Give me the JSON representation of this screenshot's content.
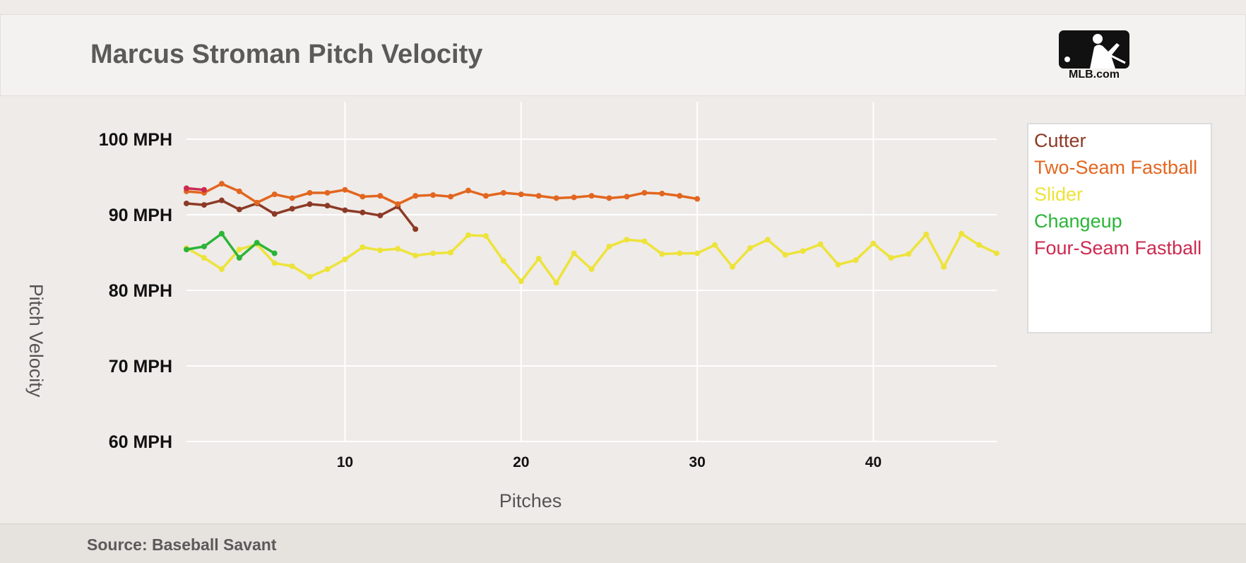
{
  "header": {
    "title": "Marcus Stroman Pitch Velocity",
    "logo_text": "MLB.com",
    "logo_icon": "mlb-batter-logo-icon"
  },
  "footer": {
    "source": "Source: Baseball Savant"
  },
  "chart_data": {
    "type": "line",
    "title": "Marcus Stroman Pitch Velocity",
    "xlabel": "Pitches",
    "ylabel": "Pitch Velocity",
    "xlim": [
      1,
      47
    ],
    "ylim": [
      60,
      100
    ],
    "x_ticks": [
      10,
      20,
      30,
      40
    ],
    "x_tick_labels": [
      "10",
      "20",
      "30",
      "40"
    ],
    "y_ticks": [
      60,
      70,
      80,
      90,
      100
    ],
    "y_tick_labels": [
      "60 MPH",
      "70 MPH",
      "80 MPH",
      "90 MPH",
      "100 MPH"
    ],
    "grid": true,
    "legend": "right",
    "series": [
      {
        "name": "Cutter",
        "color": "#8c3a26",
        "x": [
          1,
          2,
          3,
          4,
          5,
          6,
          7,
          8,
          9,
          10,
          11,
          12,
          13,
          14
        ],
        "values": [
          91.5,
          91.3,
          91.9,
          90.7,
          91.5,
          90.1,
          90.8,
          91.4,
          91.2,
          90.6,
          90.3,
          89.9,
          91.1,
          88.1
        ]
      },
      {
        "name": "Two-Seam Fastball",
        "color": "#e2661f",
        "x": [
          1,
          2,
          3,
          4,
          5,
          6,
          7,
          8,
          9,
          10,
          11,
          12,
          13,
          14,
          15,
          16,
          17,
          18,
          19,
          20,
          21,
          22,
          23,
          24,
          25,
          26,
          27,
          28,
          29,
          30
        ],
        "values": [
          93.1,
          92.9,
          94.1,
          93.1,
          91.6,
          92.7,
          92.2,
          92.9,
          92.9,
          93.3,
          92.4,
          92.5,
          91.4,
          92.5,
          92.6,
          92.4,
          93.2,
          92.5,
          92.9,
          92.7,
          92.5,
          92.2,
          92.3,
          92.5,
          92.2,
          92.4,
          92.9,
          92.8,
          92.5,
          92.1
        ]
      },
      {
        "name": "Slider",
        "color": "#ede33a",
        "x": [
          1,
          2,
          3,
          4,
          5,
          6,
          7,
          8,
          9,
          10,
          11,
          12,
          13,
          14,
          15,
          16,
          17,
          18,
          19,
          20,
          21,
          22,
          23,
          24,
          25,
          26,
          27,
          28,
          29,
          30,
          31,
          32,
          33,
          34,
          35,
          36,
          37,
          38,
          39,
          40,
          41,
          42,
          43,
          44,
          45,
          46,
          47
        ],
        "values": [
          85.6,
          84.3,
          82.8,
          85.4,
          86.1,
          83.6,
          83.2,
          81.8,
          82.8,
          84.1,
          85.7,
          85.3,
          85.5,
          84.6,
          84.9,
          85.0,
          87.3,
          87.2,
          83.9,
          81.2,
          84.2,
          81.0,
          84.9,
          82.8,
          85.8,
          86.7,
          86.5,
          84.8,
          84.9,
          84.9,
          86.0,
          83.1,
          85.6,
          86.7,
          84.7,
          85.2,
          86.1,
          83.4,
          84.0,
          86.2,
          84.3,
          84.8,
          87.4,
          83.1,
          87.5,
          86.0,
          84.9
        ]
      },
      {
        "name": "Changeup",
        "color": "#2bb538",
        "x": [
          1,
          2,
          3,
          4,
          5,
          6
        ],
        "values": [
          85.4,
          85.8,
          87.5,
          84.3,
          86.3,
          84.9
        ]
      },
      {
        "name": "Four-Seam Fastball",
        "color": "#cc2a50",
        "x": [
          1,
          2
        ],
        "values": [
          93.5,
          93.3
        ]
      }
    ]
  }
}
